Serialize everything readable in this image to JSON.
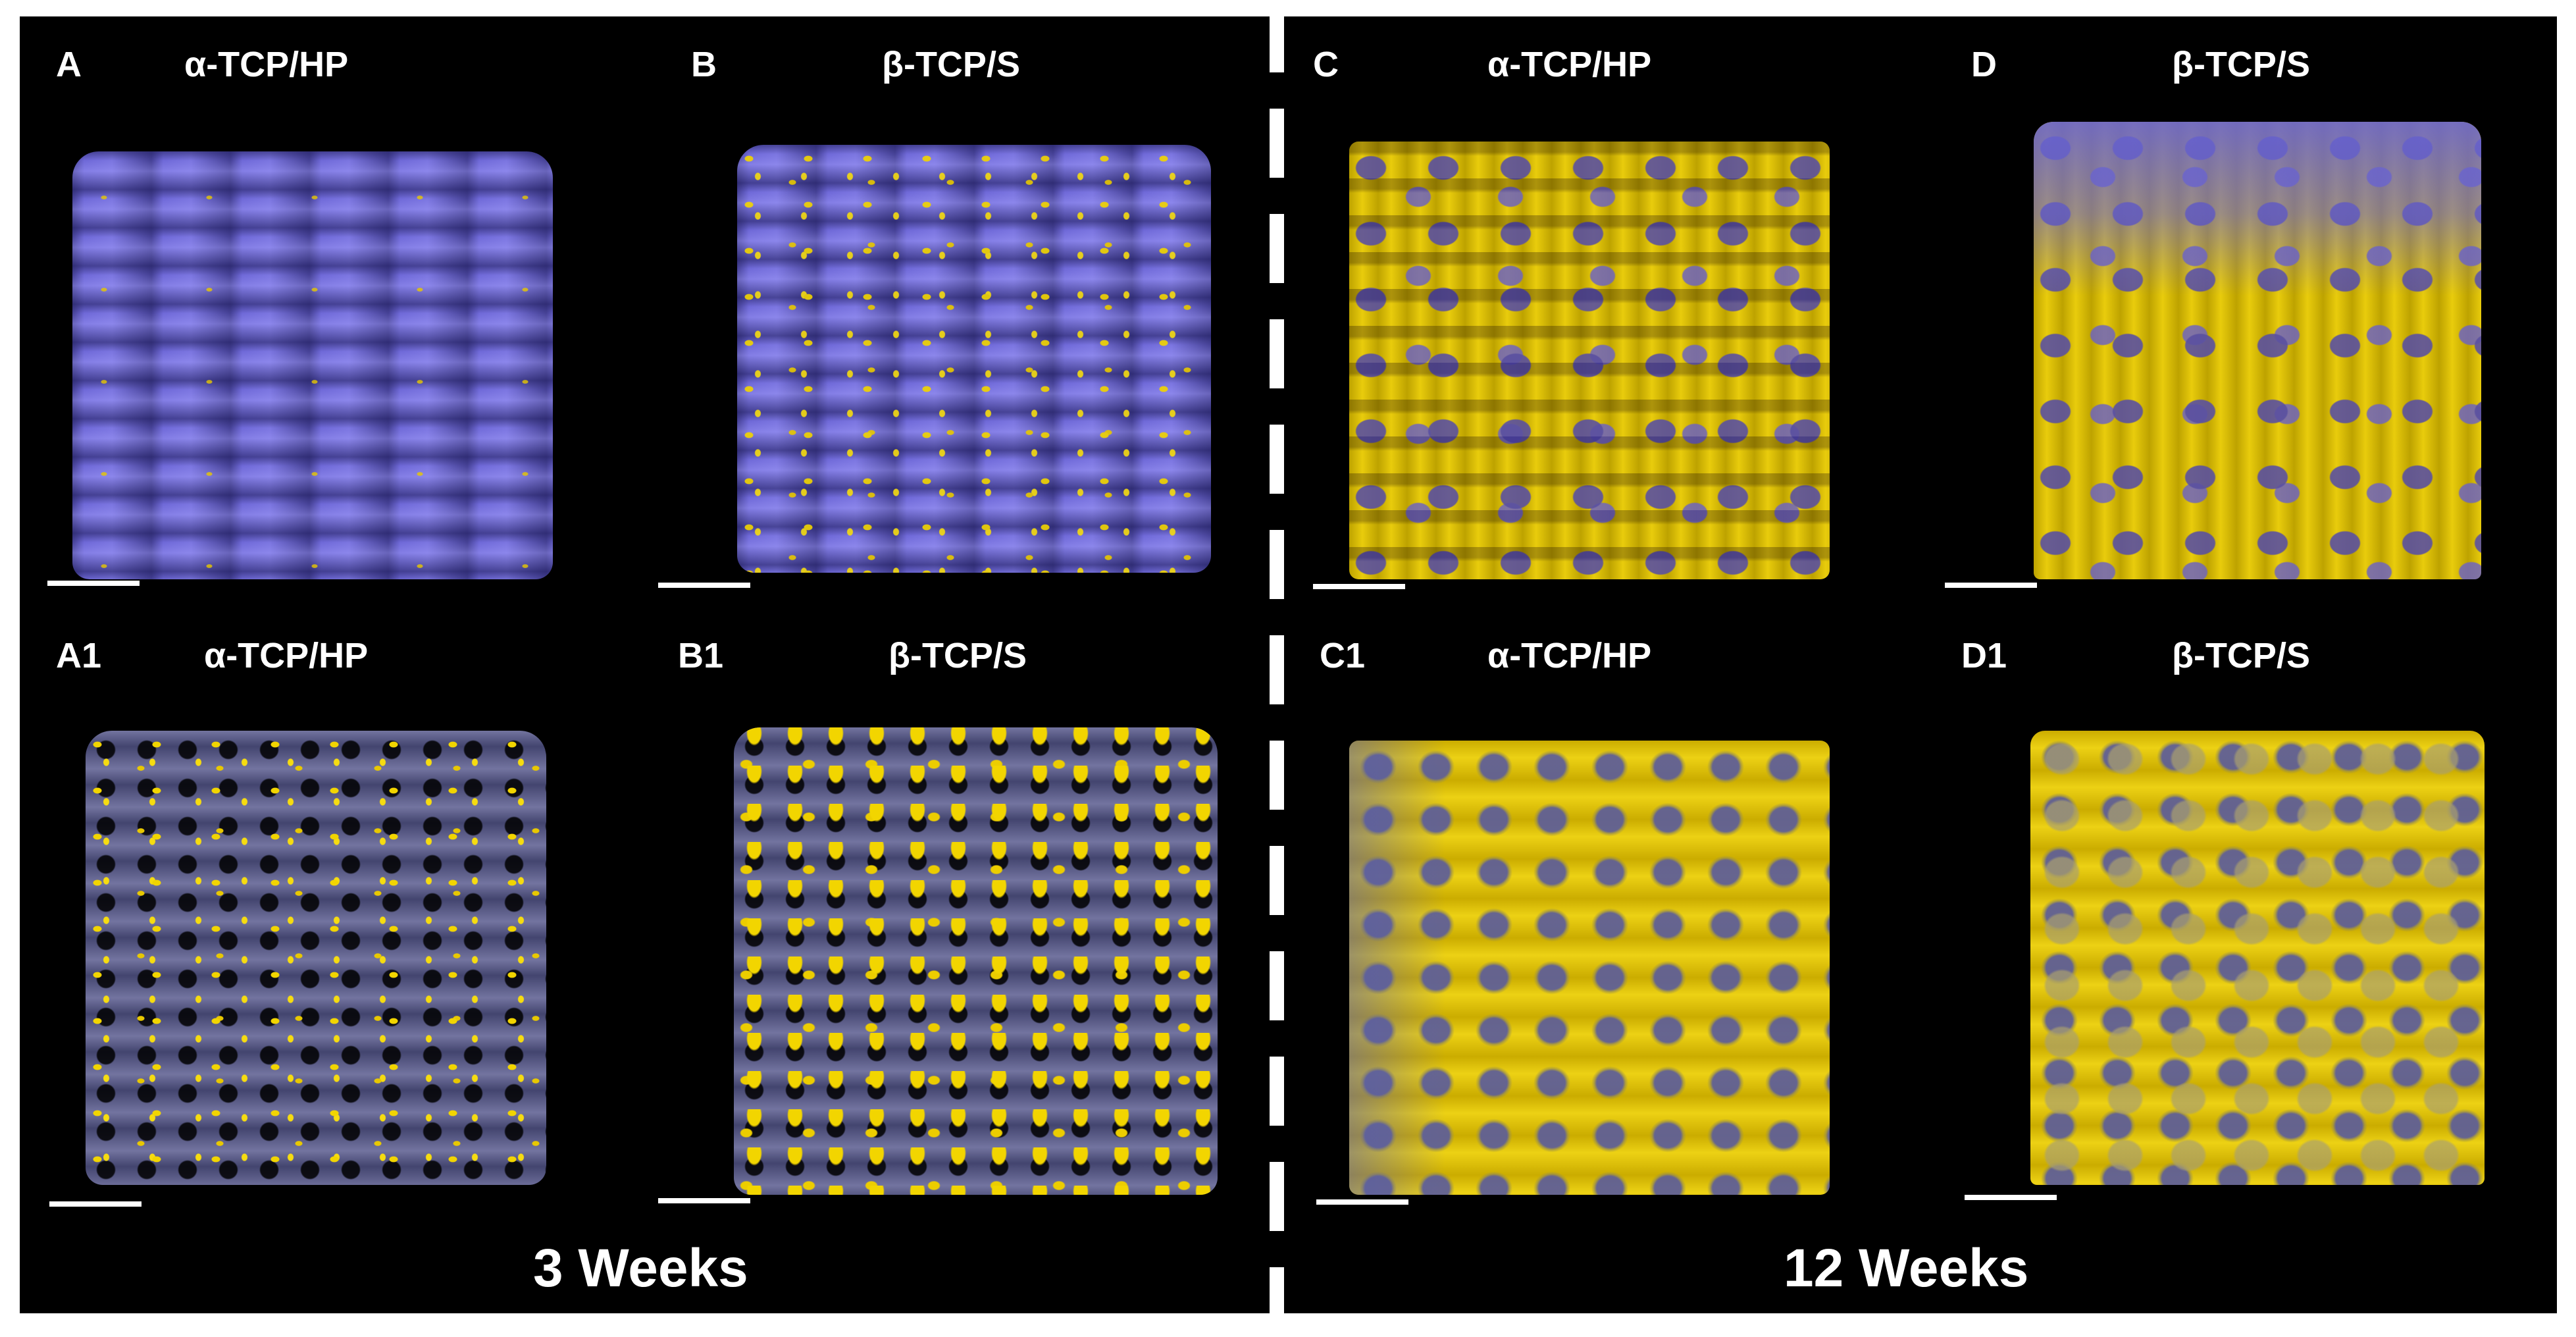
{
  "panels": {
    "A": {
      "letter": "A",
      "title": "α-TCP/HP"
    },
    "B": {
      "letter": "B",
      "title": "β-TCP/S"
    },
    "C": {
      "letter": "C",
      "title": "α-TCP/HP"
    },
    "D": {
      "letter": "D",
      "title": "β-TCP/S"
    },
    "A1": {
      "letter": "A1",
      "title": "α-TCP/HP"
    },
    "B1": {
      "letter": "B1",
      "title": "β-TCP/S"
    },
    "C1": {
      "letter": "C1",
      "title": "α-TCP/HP"
    },
    "D1": {
      "letter": "D1",
      "title": "β-TCP/S"
    }
  },
  "footers": {
    "left": "3 Weeks",
    "right": "12 Weeks"
  },
  "colors": {
    "background": "#000000",
    "scaffold": "#6f69d8",
    "bone": "#e6c700",
    "text": "#ffffff"
  }
}
